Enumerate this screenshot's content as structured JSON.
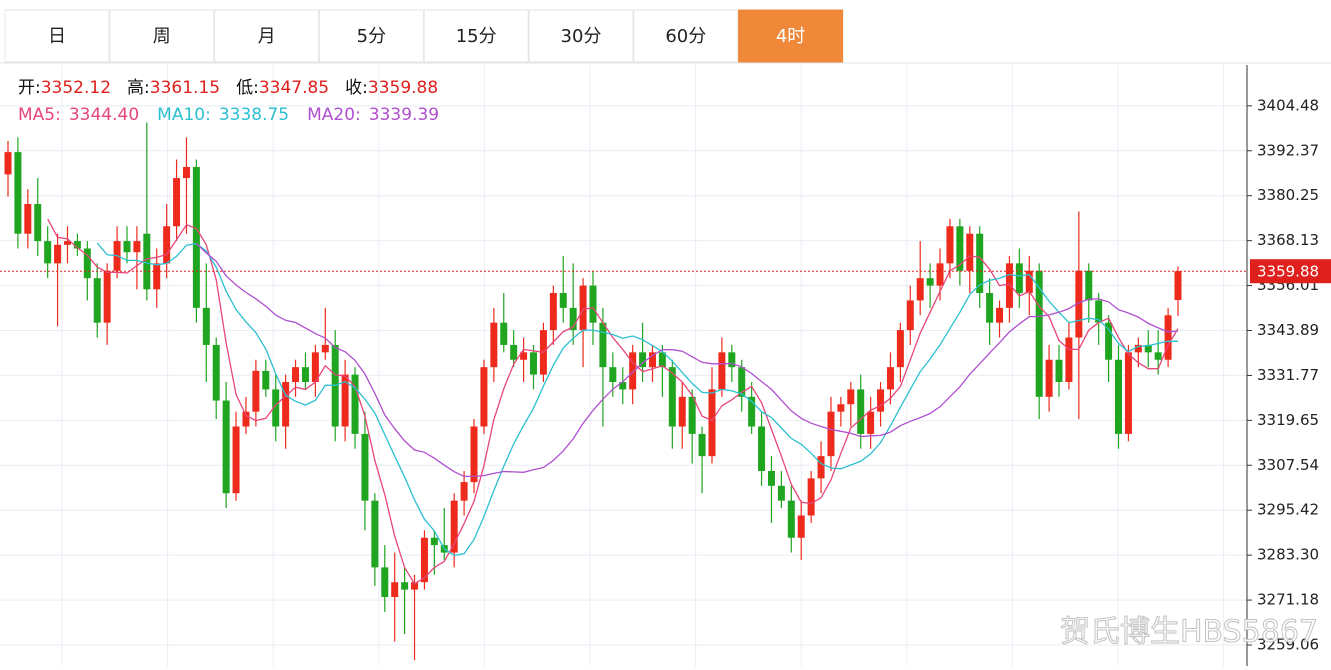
{
  "tabs": [
    "日",
    "周",
    "月",
    "5分",
    "15分",
    "30分",
    "60分",
    "4时"
  ],
  "active_tab": 7,
  "chart_data": {
    "type": "candlestick",
    "ohlc_labels": [
      "开:",
      "高:",
      "低:",
      "收:"
    ],
    "up_color": "#ee2a1c",
    "down_color": "#1fa51f",
    "moving_averages": [
      {
        "name": "MA5:",
        "period": 5,
        "color": "#e8457a",
        "last": {
          "value": 3344.4,
          "label": "3344.40"
        }
      },
      {
        "name": "MA10:",
        "period": 10,
        "color": "#2bbfd0",
        "last": 3338.75
      },
      {
        "name": "MA20:",
        "period": 20,
        "color": "#b04fcf",
        "last": 3339.39
      }
    ],
    "ylim": [
      3253.4,
      3415.5
    ],
    "yticks": [
      3404.48,
      3392.37,
      3380.25,
      3368.13,
      3356.01,
      3343.89,
      3331.77,
      3319.65,
      3307.54,
      3295.42,
      {
        "value": 3283.3,
        "label": "3283.30"
      },
      3271.18,
      3259.06
    ],
    "grid": true,
    "candles": [
      [
        3386,
        3395,
        3380,
        3392
      ],
      [
        3392,
        3396,
        3366,
        3370
      ],
      [
        3370,
        3382,
        3366,
        3378
      ],
      [
        3378,
        3385,
        3364,
        3368
      ],
      [
        3368,
        3372,
        3358,
        3362
      ],
      [
        3362,
        3370,
        3345,
        3367
      ],
      [
        3367,
        3372,
        3362,
        3368
      ],
      [
        3368,
        3370,
        3364,
        3366
      ],
      [
        3366,
        3368,
        3352,
        3358
      ],
      [
        3358,
        3362,
        3342,
        3346
      ],
      [
        3346,
        3362,
        3340,
        3360
      ],
      [
        3360,
        3372,
        3358,
        3368
      ],
      [
        3368,
        3372,
        3362,
        3365
      ],
      [
        3365,
        3372,
        3355,
        3368
      ],
      [
        3370,
        3400,
        3352,
        3355
      ],
      [
        3355,
        3366,
        3350,
        3362
      ],
      [
        3362,
        3378,
        3358,
        3372
      ],
      [
        3372,
        3390,
        3368,
        3385
      ],
      [
        3385,
        3396,
        3370,
        3388
      ],
      [
        3388,
        3390,
        3346,
        3350
      ],
      [
        3350,
        3362,
        3330,
        3340
      ],
      [
        3340,
        3342,
        3320,
        3325
      ],
      [
        3325,
        3330,
        3296,
        3300
      ],
      [
        3300,
        3322,
        3298,
        3318
      ],
      [
        3318,
        3326,
        3316,
        3322
      ],
      [
        3322,
        3336,
        3318,
        3333
      ],
      [
        3333,
        3336,
        3326,
        3328
      ],
      [
        3328,
        3332,
        3314,
        3318
      ],
      [
        3318,
        3332,
        3312,
        3330
      ],
      [
        3330,
        3336,
        3326,
        3334
      ],
      [
        3334,
        3338,
        3328,
        3330
      ],
      [
        3330,
        3340,
        3326,
        3338
      ],
      [
        3338,
        3350,
        3336,
        3340
      ],
      [
        3340,
        3344,
        3314,
        3318
      ],
      [
        3318,
        3336,
        3314,
        3332
      ],
      [
        3332,
        3334,
        3312,
        3316
      ],
      [
        3316,
        3322,
        3290,
        3298
      ],
      [
        3298,
        3300,
        3275,
        3280
      ],
      [
        3280,
        3286,
        3268,
        3272
      ],
      [
        3272,
        3284,
        3260,
        3276
      ],
      [
        3276,
        3280,
        3262,
        3274
      ],
      [
        3274,
        3278,
        3255,
        3276
      ],
      [
        3276,
        3290,
        3274,
        3288
      ],
      [
        3288,
        3290,
        3278,
        3286
      ],
      [
        3286,
        3296,
        3282,
        3284
      ],
      [
        3284,
        3300,
        3280,
        3298
      ],
      [
        3298,
        3306,
        3294,
        3303
      ],
      [
        3303,
        3320,
        3300,
        3318
      ],
      [
        3318,
        3336,
        3316,
        3334
      ],
      [
        3334,
        3350,
        3330,
        3346
      ],
      [
        3346,
        3354,
        3338,
        3340
      ],
      [
        3340,
        3344,
        3334,
        3336
      ],
      [
        3336,
        3342,
        3330,
        3338
      ],
      [
        3338,
        3340,
        3328,
        3332
      ],
      [
        3332,
        3346,
        3330,
        3344
      ],
      [
        3344,
        3356,
        3340,
        3354
      ],
      [
        3354,
        3364,
        3346,
        3350
      ],
      [
        3350,
        3362,
        3340,
        3344
      ],
      [
        3344,
        3358,
        3334,
        3356
      ],
      [
        3356,
        3360,
        3340,
        3346
      ],
      [
        3346,
        3350,
        3318,
        3334
      ],
      [
        3334,
        3338,
        3326,
        3330
      ],
      [
        3330,
        3334,
        3324,
        3328
      ],
      [
        3328,
        3340,
        3324,
        3338
      ],
      [
        3338,
        3346,
        3330,
        3334
      ],
      [
        3334,
        3340,
        3330,
        3338
      ],
      [
        3338,
        3340,
        3326,
        3334
      ],
      [
        3334,
        3336,
        3312,
        3318
      ],
      [
        3318,
        3330,
        3312,
        3326
      ],
      [
        3326,
        3328,
        3308,
        3316
      ],
      [
        3316,
        3318,
        3300,
        3310
      ],
      [
        3310,
        3334,
        3308,
        3328
      ],
      [
        3328,
        3342,
        3326,
        3338
      ],
      [
        3338,
        3340,
        3330,
        3334
      ],
      [
        3334,
        3336,
        3322,
        3326
      ],
      [
        3326,
        3330,
        3316,
        3318
      ],
      [
        3318,
        3322,
        3302,
        3306
      ],
      [
        3306,
        3310,
        3292,
        3302
      ],
      [
        3302,
        3306,
        3296,
        3298
      ],
      [
        3298,
        3302,
        3284,
        3288
      ],
      [
        3288,
        3298,
        3282,
        3294
      ],
      [
        3294,
        3306,
        3292,
        3304
      ],
      [
        3304,
        3314,
        3300,
        3310
      ],
      [
        3310,
        3326,
        3306,
        3322
      ],
      [
        3322,
        3326,
        3318,
        3324
      ],
      [
        3324,
        3330,
        3318,
        3328
      ],
      [
        3328,
        3332,
        3312,
        3316
      ],
      [
        3316,
        3326,
        3312,
        3322
      ],
      [
        3322,
        3330,
        3318,
        3328
      ],
      [
        3328,
        3338,
        3324,
        3334
      ],
      [
        3334,
        3346,
        3330,
        3344
      ],
      [
        3344,
        3356,
        3340,
        3352
      ],
      [
        3352,
        3368,
        3348,
        3358
      ],
      [
        3358,
        3362,
        3350,
        3356
      ],
      [
        3356,
        3366,
        3352,
        3362
      ],
      [
        3362,
        3374,
        3358,
        3372
      ],
      [
        3372,
        3374,
        3356,
        3360
      ],
      [
        3360,
        3372,
        3354,
        3370
      ],
      [
        3370,
        3372,
        3350,
        3354
      ],
      [
        3354,
        3358,
        3340,
        3346
      ],
      [
        3346,
        3352,
        3342,
        3350
      ],
      [
        3350,
        3364,
        3346,
        3362
      ],
      [
        3362,
        3366,
        3350,
        3354
      ],
      [
        3354,
        3364,
        3348,
        3360
      ],
      [
        3360,
        3362,
        3320,
        3326
      ],
      [
        3326,
        3340,
        3322,
        3336
      ],
      [
        3336,
        3340,
        3326,
        3330
      ],
      [
        3330,
        3346,
        3328,
        3342
      ],
      [
        3342,
        3376,
        3320,
        3360
      ],
      [
        3360,
        3362,
        3346,
        3352
      ],
      [
        3352,
        3354,
        3340,
        3346
      ],
      [
        3346,
        3348,
        3330,
        3336
      ],
      [
        3336,
        3340,
        3312,
        3316
      ],
      [
        3316,
        3340,
        3314,
        3338
      ],
      [
        3338,
        3342,
        3334,
        3340
      ],
      [
        3340,
        3344,
        3334,
        3338
      ],
      [
        3338,
        3344,
        3332,
        3336
      ],
      [
        3336,
        3350,
        3334,
        3348
      ],
      [
        3352.12,
        3361.15,
        3347.85,
        3359.88
      ]
    ]
  },
  "watermark": "贺氏博生HBS5867"
}
